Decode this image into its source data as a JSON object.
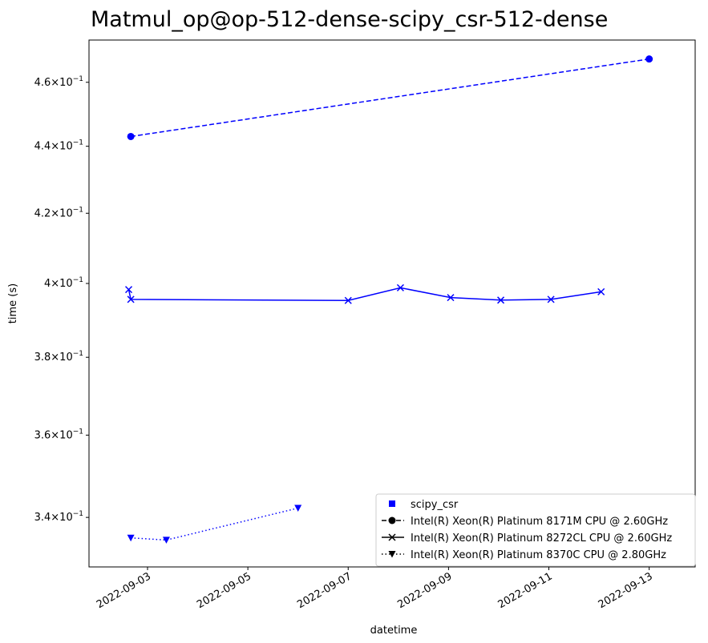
{
  "chart_data": {
    "type": "line",
    "title": "Matmul_op@op-512-dense-scipy_csr-512-dense",
    "xlabel": "datetime",
    "ylabel": "time (s)",
    "y_scale": "log",
    "xlim": [
      "2022-09-01T20:00",
      "2022-09-13T22:00"
    ],
    "ylim": [
      0.3285,
      0.4737
    ],
    "x_ticks": [
      "2022-09-03",
      "2022-09-05",
      "2022-09-07",
      "2022-09-09",
      "2022-09-11",
      "2022-09-13"
    ],
    "y_ticks": [
      {
        "value": 0.34,
        "mant": "3.4",
        "exp": "−1"
      },
      {
        "value": 0.36,
        "mant": "3.6",
        "exp": "−1"
      },
      {
        "value": 0.38,
        "mant": "3.8",
        "exp": "−1"
      },
      {
        "value": 0.4,
        "mant": "4",
        "exp": "−1"
      },
      {
        "value": 0.42,
        "mant": "4.2",
        "exp": "−1"
      },
      {
        "value": 0.44,
        "mant": "4.4",
        "exp": "−1"
      },
      {
        "value": 0.46,
        "mant": "4.6",
        "exp": "−1"
      }
    ],
    "grid": false,
    "legend_position": "lower-right",
    "color": "#0000ff",
    "legend": [
      {
        "label": "scipy_csr",
        "marker": "square",
        "dash": "none"
      },
      {
        "label": "Intel(R) Xeon(R) Platinum 8171M CPU @ 2.60GHz",
        "marker": "circle",
        "dash": "dashed"
      },
      {
        "label": "Intel(R) Xeon(R) Platinum 8272CL CPU @ 2.60GHz",
        "marker": "x",
        "dash": "solid"
      },
      {
        "label": "Intel(R) Xeon(R) Platinum 8370C CPU @ 2.80GHz",
        "marker": "triangle-down",
        "dash": "dotted"
      }
    ],
    "series": [
      {
        "name": "Intel(R) Xeon(R) Platinum 8171M CPU @ 2.60GHz",
        "marker": "circle",
        "dash": "dashed",
        "points": [
          [
            "2022-09-02T16:00",
            0.443
          ],
          [
            "2022-09-13T00:00",
            0.4675
          ]
        ]
      },
      {
        "name": "Intel(R) Xeon(R) Platinum 8272CL CPU @ 2.60GHz",
        "marker": "x",
        "dash": "solid",
        "points": [
          [
            "2022-09-02T15:00",
            0.3983
          ],
          [
            "2022-09-02T16:00",
            0.3956
          ],
          [
            "2022-09-07T00:00",
            0.3953
          ],
          [
            "2022-09-08T01:00",
            0.3988
          ],
          [
            "2022-09-09T01:00",
            0.3961
          ],
          [
            "2022-09-10T01:00",
            0.3954
          ],
          [
            "2022-09-11T01:00",
            0.3956
          ],
          [
            "2022-09-12T01:00",
            0.3977
          ]
        ]
      },
      {
        "name": "Intel(R) Xeon(R) Platinum 8370C CPU @ 2.80GHz",
        "marker": "triangle-down",
        "dash": "dotted",
        "points": [
          [
            "2022-09-02T16:00",
            0.3352
          ],
          [
            "2022-09-03T09:00",
            0.3347
          ],
          [
            "2022-09-06T00:00",
            0.3422
          ]
        ]
      }
    ]
  }
}
